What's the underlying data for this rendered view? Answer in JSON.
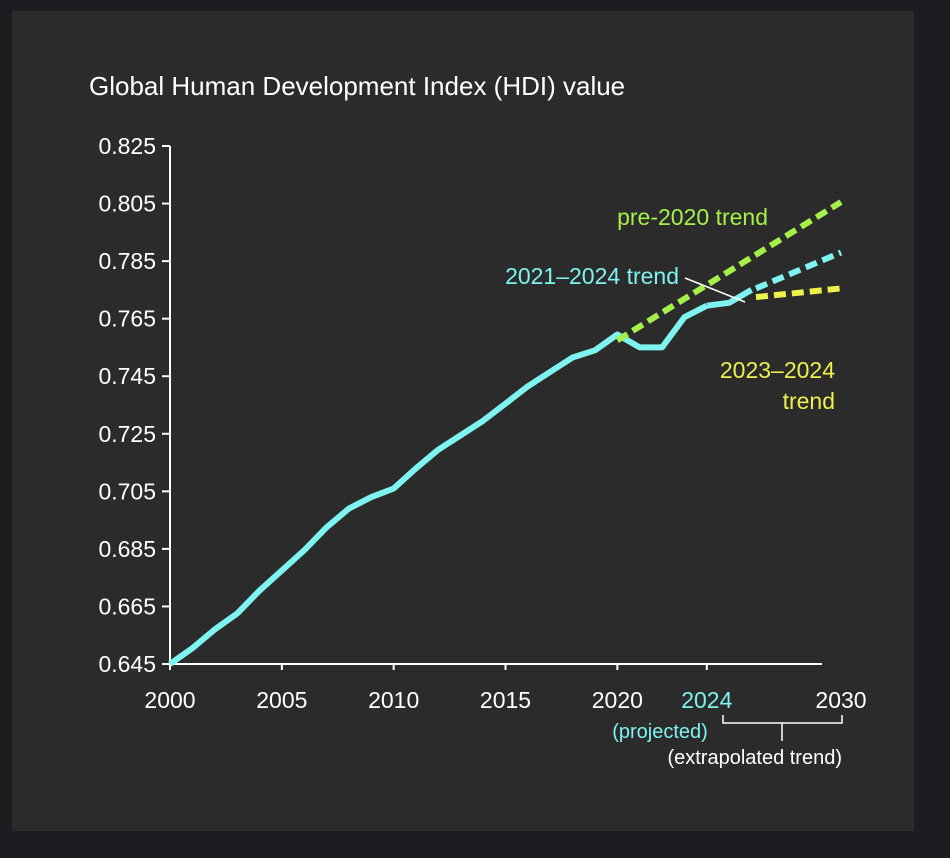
{
  "colors": {
    "outer_background": "#1c1d21",
    "panel_background": "#2b2b2b",
    "axis": "#ffffff",
    "text": "#ffffff",
    "cyan": "#7ef3ef",
    "green": "#a6f04a",
    "yellow": "#eef04c"
  },
  "chart_data": {
    "type": "line",
    "title": "Global Human Development Index (HDI) value",
    "xlabel": "",
    "ylabel": "",
    "xlim": [
      2000,
      2030
    ],
    "ylim": [
      0.645,
      0.825
    ],
    "y_ticks": [
      "0.825",
      "0.805",
      "0.785",
      "0.765",
      "0.745",
      "0.725",
      "0.705",
      "0.685",
      "0.665",
      "0.645"
    ],
    "x_ticks": [
      {
        "value": 2000,
        "label": "2000",
        "color": "#ffffff"
      },
      {
        "value": 2005,
        "label": "2005",
        "color": "#ffffff"
      },
      {
        "value": 2010,
        "label": "2010",
        "color": "#ffffff"
      },
      {
        "value": 2015,
        "label": "2015",
        "color": "#ffffff"
      },
      {
        "value": 2020,
        "label": "2020",
        "color": "#ffffff"
      },
      {
        "value": 2024,
        "label": "2024",
        "color": "#7ef3ef"
      },
      {
        "value": 2030,
        "label": "2030",
        "color": "#ffffff"
      }
    ],
    "grid": false,
    "series": [
      {
        "key": "hdi",
        "color": "#7ef3ef",
        "style": "solid",
        "x": [
          2000,
          2001,
          2002,
          2003,
          2004,
          2005,
          2006,
          2007,
          2008,
          2009,
          2010,
          2011,
          2012,
          2013,
          2014,
          2015,
          2016,
          2017,
          2018,
          2019,
          2020,
          2021,
          2022,
          2023,
          2024
        ],
        "y": [
          0.645,
          0.6505,
          0.657,
          0.6625,
          0.6705,
          0.6775,
          0.6845,
          0.6925,
          0.699,
          0.703,
          0.706,
          0.713,
          0.7195,
          0.7245,
          0.7295,
          0.7355,
          0.7415,
          0.7465,
          0.7515,
          0.754,
          0.7595,
          0.755,
          0.755,
          0.7655,
          0.7695
        ]
      },
      {
        "key": "hdi_2024_projected",
        "color": "#7ef3ef",
        "style": "solid",
        "x": [
          2024,
          2025,
          2026
        ],
        "y": [
          0.7695,
          0.7705,
          0.775
        ]
      },
      {
        "key": "pre2020",
        "color": "#a6f04a",
        "style": "dashed",
        "x": [
          2020,
          2030
        ],
        "y": [
          0.7575,
          0.8055
        ]
      },
      {
        "key": "t2124",
        "color": "#7ef3ef",
        "style": "dashed",
        "x": [
          2026.2,
          2030
        ],
        "y": [
          0.7755,
          0.788
        ]
      },
      {
        "key": "t2324",
        "color": "#eef04c",
        "style": "dashed",
        "x": [
          2026.2,
          2030
        ],
        "y": [
          0.7725,
          0.7755
        ]
      }
    ],
    "annotations": {
      "pre2020": "pre-2020 trend",
      "t2124": "2021–2024 trend",
      "t2324_line1": "2023–2024",
      "t2324_line2": "trend",
      "projected": "(projected)",
      "extrapolated": "(extrapolated trend)"
    }
  }
}
